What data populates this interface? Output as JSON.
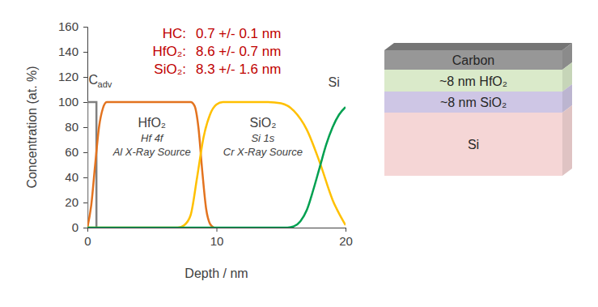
{
  "chart_data": {
    "type": "line",
    "x_label": "Depth / nm",
    "y_label": "Concentration (at. %)",
    "xlim": [
      0,
      20
    ],
    "xticks": [
      0,
      10,
      20
    ],
    "ylim": [
      0,
      160
    ],
    "yticks": [
      0,
      20,
      40,
      60,
      80,
      100,
      120,
      140,
      160
    ],
    "grid": false,
    "series": [
      {
        "name": "Cadv",
        "color": "#7f7f7f",
        "x": [
          0,
          0,
          0.7,
          0.7
        ],
        "values": [
          0,
          100,
          100,
          0
        ]
      },
      {
        "name": "HfO₂",
        "color": "#e3731f",
        "x": [
          0,
          0.3,
          0.6,
          0.9,
          1.2,
          1.5,
          2,
          4,
          6,
          8,
          8.3,
          8.6,
          8.9,
          9.2,
          9.5,
          9.8
        ],
        "values": [
          0,
          18,
          50,
          80,
          95,
          100,
          100,
          100,
          100,
          100,
          97,
          80,
          45,
          15,
          3,
          0
        ]
      },
      {
        "name": "SiO₂",
        "color": "#ffc000",
        "x": [
          0,
          7,
          7.5,
          8,
          8.5,
          9,
          9.5,
          10,
          10.5,
          11,
          14,
          15,
          16,
          17,
          18,
          19,
          20
        ],
        "values": [
          0,
          0,
          2,
          10,
          40,
          72,
          90,
          98,
          100,
          100,
          100,
          99,
          93,
          78,
          52,
          22,
          2
        ]
      },
      {
        "name": "Si",
        "color": "#00a050",
        "x": [
          0,
          15.5,
          16,
          16.5,
          17,
          17.5,
          18,
          18.5,
          19,
          19.5,
          20
        ],
        "values": [
          0,
          0,
          1,
          5,
          14,
          30,
          48,
          66,
          80,
          90,
          96
        ]
      }
    ],
    "thickness_labels": [
      {
        "label": "HC:",
        "value": "0.7 +/- 0.1 nm"
      },
      {
        "label": "HfO₂:",
        "value": "8.6 +/- 0.7 nm"
      },
      {
        "label": "SiO₂:",
        "value": "8.3 +/- 1.6 nm"
      }
    ],
    "annotations": [
      {
        "text": "C",
        "sub": "adv",
        "x": 0.1,
        "y": 114
      },
      {
        "text": "HfO₂",
        "lines": [
          "Hf 4f",
          "Al X-Ray Source"
        ],
        "x": 5,
        "y": 80
      },
      {
        "text": "SiO₂",
        "lines": [
          "Si 1s",
          "Cr X-Ray Source"
        ],
        "x": 13.6,
        "y": 80
      },
      {
        "text": "Si",
        "x": 19.1,
        "y": 112
      }
    ]
  },
  "diagram": {
    "layers": [
      {
        "label": "Carbon",
        "color": "#8c8c8c"
      },
      {
        "label": "~8 nm HfO₂",
        "color": "#d6e8c4"
      },
      {
        "label": "~8 nm SiO₂",
        "color": "#c9c0e2"
      },
      {
        "label": "Si",
        "color": "#f4d2d2"
      }
    ]
  }
}
